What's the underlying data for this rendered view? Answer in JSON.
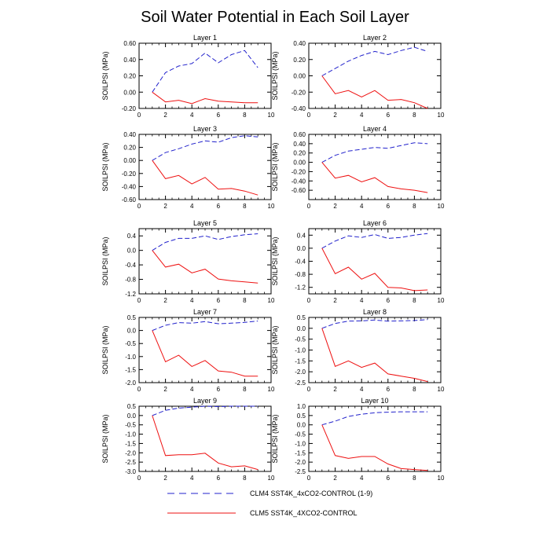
{
  "title": "Soil Water Potential in Each Soil Layer",
  "colors": {
    "clm4": "#2222cc",
    "clm5": "#ee1111",
    "axis": "#000000"
  },
  "legend": [
    {
      "label": "CLM4 SST4K_4xCO2-CONTROL (1-9)",
      "style": "dashed",
      "color": "#2222cc"
    },
    {
      "label": "CLM5 SST4K_4XCO2-CONTROL",
      "style": "solid",
      "color": "#ee1111"
    }
  ],
  "chart_data": [
    {
      "type": "line",
      "title": "Layer 1",
      "ylabel": "SOILPSI  (MPa)",
      "xlim": [
        0,
        10
      ],
      "xticks": [
        "0",
        "2",
        "4",
        "6",
        "8",
        "10"
      ],
      "ylim": [
        -0.2,
        0.6
      ],
      "yticks": [
        "-0.20",
        "0.00",
        "0.20",
        "0.40",
        "0.60"
      ],
      "x": [
        1,
        2,
        3,
        4,
        5,
        6,
        7,
        8,
        9
      ],
      "series": [
        {
          "name": "CLM4",
          "values": [
            0.0,
            0.24,
            0.32,
            0.35,
            0.48,
            0.36,
            0.46,
            0.51,
            0.3
          ]
        },
        {
          "name": "CLM5",
          "values": [
            0.0,
            -0.12,
            -0.1,
            -0.14,
            -0.08,
            -0.11,
            -0.12,
            -0.13,
            -0.13
          ]
        }
      ]
    },
    {
      "type": "line",
      "title": "Layer 2",
      "ylabel": "SOILPSI  (MPa)",
      "xlim": [
        0,
        10
      ],
      "xticks": [
        "0",
        "2",
        "4",
        "6",
        "8",
        "10"
      ],
      "ylim": [
        -0.4,
        0.4
      ],
      "yticks": [
        "-0.40",
        "-0.20",
        "0.00",
        "0.20",
        "0.40"
      ],
      "x": [
        1,
        2,
        3,
        4,
        5,
        6,
        7,
        8,
        9
      ],
      "series": [
        {
          "name": "CLM4",
          "values": [
            0.0,
            0.09,
            0.18,
            0.25,
            0.3,
            0.26,
            0.31,
            0.35,
            0.3
          ]
        },
        {
          "name": "CLM5",
          "values": [
            0.0,
            -0.22,
            -0.18,
            -0.26,
            -0.18,
            -0.3,
            -0.29,
            -0.33,
            -0.4
          ]
        }
      ]
    },
    {
      "type": "line",
      "title": "Layer 3",
      "ylabel": "SOILPSI  (MPa)",
      "xlim": [
        0,
        10
      ],
      "xticks": [
        "0",
        "2",
        "4",
        "6",
        "8",
        "10"
      ],
      "ylim": [
        -0.6,
        0.4
      ],
      "yticks": [
        "-0.60",
        "-0.40",
        "-0.20",
        "0.00",
        "0.20",
        "0.40"
      ],
      "x": [
        1,
        2,
        3,
        4,
        5,
        6,
        7,
        8,
        9
      ],
      "series": [
        {
          "name": "CLM4",
          "values": [
            0.0,
            0.12,
            0.18,
            0.25,
            0.3,
            0.28,
            0.35,
            0.38,
            0.36
          ]
        },
        {
          "name": "CLM5",
          "values": [
            0.0,
            -0.28,
            -0.23,
            -0.36,
            -0.26,
            -0.44,
            -0.43,
            -0.47,
            -0.53
          ]
        }
      ]
    },
    {
      "type": "line",
      "title": "Layer 4",
      "ylabel": "SOILPSI  (MPa)",
      "xlim": [
        0,
        10
      ],
      "xticks": [
        "0",
        "2",
        "4",
        "6",
        "8",
        "10"
      ],
      "ylim": [
        -0.8,
        0.6
      ],
      "yticks": [
        "-0.60",
        "-0.40",
        "-0.20",
        "0.00",
        "0.20",
        "0.40",
        "0.60"
      ],
      "x": [
        1,
        2,
        3,
        4,
        5,
        6,
        7,
        8,
        9
      ],
      "series": [
        {
          "name": "CLM4",
          "values": [
            0.0,
            0.15,
            0.24,
            0.28,
            0.32,
            0.3,
            0.36,
            0.42,
            0.4
          ]
        },
        {
          "name": "CLM5",
          "values": [
            0.0,
            -0.34,
            -0.28,
            -0.42,
            -0.33,
            -0.52,
            -0.57,
            -0.6,
            -0.65
          ]
        }
      ]
    },
    {
      "type": "line",
      "title": "Layer 5",
      "ylabel": "SOILPSI  (MPa)",
      "xlim": [
        0,
        10
      ],
      "xticks": [
        "0",
        "2",
        "4",
        "6",
        "8",
        "10"
      ],
      "ylim": [
        -1.2,
        0.6
      ],
      "yticks": [
        "-1.2",
        "-0.8",
        "-0.4",
        "0.0",
        "0.4"
      ],
      "x": [
        1,
        2,
        3,
        4,
        5,
        6,
        7,
        8,
        9
      ],
      "series": [
        {
          "name": "CLM4",
          "values": [
            0.0,
            0.22,
            0.33,
            0.33,
            0.4,
            0.3,
            0.38,
            0.43,
            0.46
          ]
        },
        {
          "name": "CLM5",
          "values": [
            0.0,
            -0.46,
            -0.38,
            -0.62,
            -0.52,
            -0.79,
            -0.84,
            -0.87,
            -0.9
          ]
        }
      ]
    },
    {
      "type": "line",
      "title": "Layer 6",
      "ylabel": "SOILPSI  (MPa)",
      "xlim": [
        0,
        10
      ],
      "xticks": [
        "0",
        "2",
        "4",
        "6",
        "8",
        "10"
      ],
      "ylim": [
        -1.4,
        0.6
      ],
      "yticks": [
        "-1.2",
        "-0.8",
        "-0.4",
        "0.0",
        "0.4"
      ],
      "x": [
        1,
        2,
        3,
        4,
        5,
        6,
        7,
        8,
        9
      ],
      "series": [
        {
          "name": "CLM4",
          "values": [
            0.0,
            0.22,
            0.38,
            0.33,
            0.42,
            0.3,
            0.33,
            0.4,
            0.45
          ]
        },
        {
          "name": "CLM5",
          "values": [
            0.0,
            -0.78,
            -0.58,
            -0.95,
            -0.77,
            -1.2,
            -1.22,
            -1.3,
            -1.28
          ]
        }
      ]
    },
    {
      "type": "line",
      "title": "Layer 7",
      "ylabel": "SOILPSI  (MPa)",
      "xlim": [
        0,
        10
      ],
      "xticks": [
        "0",
        "2",
        "4",
        "6",
        "8",
        "10"
      ],
      "ylim": [
        -2.0,
        0.5
      ],
      "yticks": [
        "-2.0",
        "-1.5",
        "-1.0",
        "-0.5",
        "0.0",
        "0.5"
      ],
      "x": [
        1,
        2,
        3,
        4,
        5,
        6,
        7,
        8,
        9
      ],
      "series": [
        {
          "name": "CLM4",
          "values": [
            0.0,
            0.2,
            0.3,
            0.28,
            0.34,
            0.26,
            0.28,
            0.31,
            0.36
          ]
        },
        {
          "name": "CLM5",
          "values": [
            0.0,
            -1.2,
            -0.95,
            -1.38,
            -1.15,
            -1.55,
            -1.6,
            -1.75,
            -1.75
          ]
        }
      ]
    },
    {
      "type": "line",
      "title": "Layer 8",
      "ylabel": "SOILPSI  (MPa)",
      "xlim": [
        0,
        10
      ],
      "xticks": [
        "0",
        "2",
        "4",
        "6",
        "8",
        "10"
      ],
      "ylim": [
        -2.5,
        0.5
      ],
      "yticks": [
        "-2.5",
        "-2.0",
        "-1.5",
        "-1.0",
        "-0.5",
        "0.0",
        "0.5"
      ],
      "x": [
        1,
        2,
        3,
        4,
        5,
        6,
        7,
        8,
        9
      ],
      "series": [
        {
          "name": "CLM4",
          "values": [
            0.0,
            0.22,
            0.33,
            0.34,
            0.38,
            0.33,
            0.34,
            0.36,
            0.4
          ]
        },
        {
          "name": "CLM5",
          "values": [
            0.0,
            -1.75,
            -1.5,
            -1.8,
            -1.6,
            -2.1,
            -2.2,
            -2.3,
            -2.45
          ]
        }
      ]
    },
    {
      "type": "line",
      "title": "Layer 9",
      "ylabel": "SOILPSI  (MPa)",
      "xlim": [
        0,
        10
      ],
      "xticks": [
        "0",
        "2",
        "4",
        "6",
        "8",
        "10"
      ],
      "ylim": [
        -3.0,
        0.5
      ],
      "yticks": [
        "-3.0",
        "-2.5",
        "-2.0",
        "-1.5",
        "-1.0",
        "-0.5",
        "0.0",
        "0.5"
      ],
      "x": [
        1,
        2,
        3,
        4,
        5,
        6,
        7,
        8,
        9
      ],
      "series": [
        {
          "name": "CLM4",
          "values": [
            0.0,
            0.28,
            0.4,
            0.45,
            0.5,
            0.48,
            0.5,
            0.5,
            0.5
          ]
        },
        {
          "name": "CLM5",
          "values": [
            0.0,
            -2.15,
            -2.1,
            -2.1,
            -2.02,
            -2.55,
            -2.75,
            -2.7,
            -2.9
          ]
        }
      ]
    },
    {
      "type": "line",
      "title": "Layer 10",
      "ylabel": "SOILPSI  (MPa)",
      "xlim": [
        0,
        10
      ],
      "xticks": [
        "0",
        "2",
        "4",
        "6",
        "8",
        "10"
      ],
      "ylim": [
        -2.5,
        1.0
      ],
      "yticks": [
        "-2.5",
        "-2.0",
        "-1.5",
        "-1.0",
        "-0.5",
        "0.0",
        "0.5",
        "1.0"
      ],
      "x": [
        1,
        2,
        3,
        4,
        5,
        6,
        7,
        8,
        9
      ],
      "series": [
        {
          "name": "CLM4",
          "values": [
            0.0,
            0.2,
            0.45,
            0.57,
            0.65,
            0.68,
            0.7,
            0.7,
            0.7
          ]
        },
        {
          "name": "CLM5",
          "values": [
            0.0,
            -1.65,
            -1.8,
            -1.7,
            -1.7,
            -2.1,
            -2.35,
            -2.4,
            -2.45
          ]
        }
      ]
    }
  ]
}
